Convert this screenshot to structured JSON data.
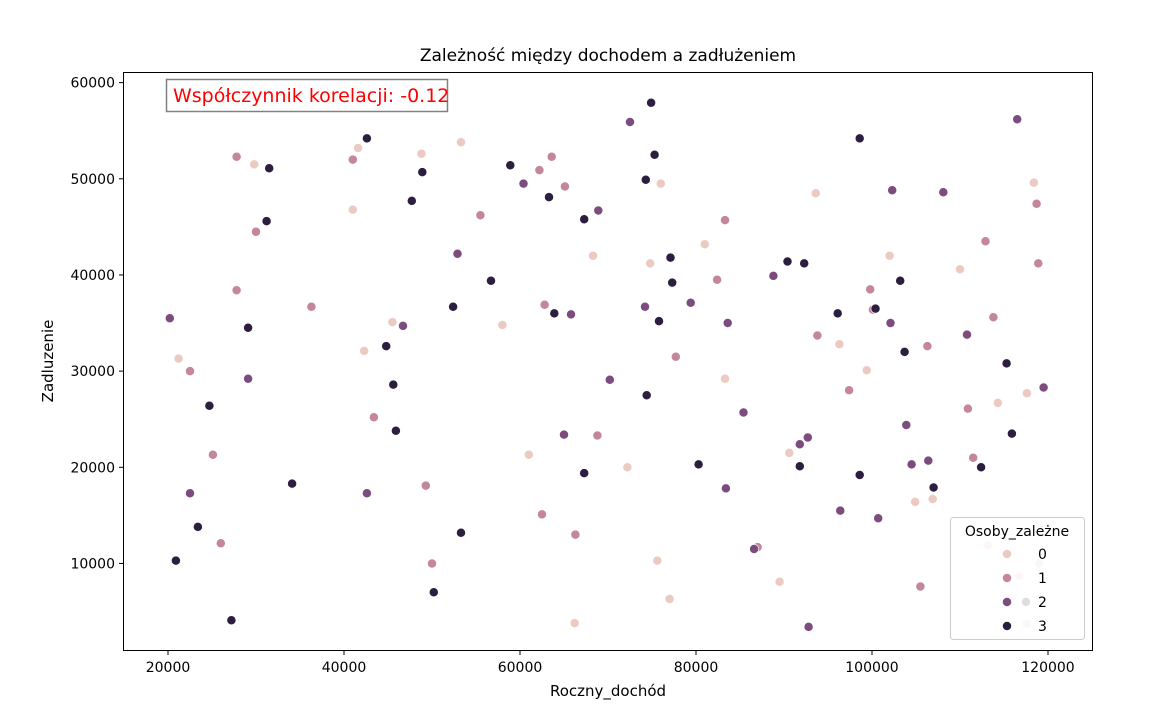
{
  "chart_data": {
    "type": "scatter",
    "title": "Zależność między dochodem a zadłużeniem",
    "xlabel": "Roczny_dochód",
    "ylabel": "Zadluzenie",
    "xlim": [
      15000,
      125000
    ],
    "ylim": [
      1000,
      61000
    ],
    "xticks": [
      20000,
      40000,
      60000,
      80000,
      100000,
      120000
    ],
    "yticks": [
      10000,
      20000,
      30000,
      40000,
      50000,
      60000
    ],
    "xtick_labels": [
      "20000",
      "40000",
      "60000",
      "80000",
      "100000",
      "120000"
    ],
    "ytick_labels": [
      "10000",
      "20000",
      "30000",
      "40000",
      "50000",
      "60000"
    ],
    "grid": false,
    "annotation": {
      "text": "Współczynnik korelacji: -0.12",
      "color": "#ff0000"
    },
    "legend": {
      "title": "Osoby_zależne",
      "placement": "lower-right",
      "entries": [
        "0",
        "1",
        "2",
        "3"
      ]
    },
    "series_colors": {
      "0": "#ebcac2",
      "1": "#c4869a",
      "2": "#7d4c7f",
      "3": "#2c1e3e"
    },
    "points": [
      {
        "x": 21200,
        "y": 31300,
        "c": 0
      },
      {
        "x": 29800,
        "y": 51500,
        "c": 0
      },
      {
        "x": 41000,
        "y": 46800,
        "c": 0
      },
      {
        "x": 41600,
        "y": 53200,
        "c": 0
      },
      {
        "x": 42300,
        "y": 32100,
        "c": 0
      },
      {
        "x": 45500,
        "y": 35100,
        "c": 0
      },
      {
        "x": 48800,
        "y": 52600,
        "c": 0
      },
      {
        "x": 53300,
        "y": 53800,
        "c": 0
      },
      {
        "x": 58000,
        "y": 34800,
        "c": 0
      },
      {
        "x": 61000,
        "y": 21300,
        "c": 0
      },
      {
        "x": 66200,
        "y": 3800,
        "c": 0
      },
      {
        "x": 68300,
        "y": 42000,
        "c": 0
      },
      {
        "x": 72200,
        "y": 20000,
        "c": 0
      },
      {
        "x": 74800,
        "y": 41200,
        "c": 0
      },
      {
        "x": 75600,
        "y": 10300,
        "c": 0
      },
      {
        "x": 76000,
        "y": 49500,
        "c": 0
      },
      {
        "x": 77000,
        "y": 6300,
        "c": 0
      },
      {
        "x": 81000,
        "y": 43200,
        "c": 0
      },
      {
        "x": 83300,
        "y": 29200,
        "c": 0
      },
      {
        "x": 89500,
        "y": 8100,
        "c": 0
      },
      {
        "x": 90600,
        "y": 21500,
        "c": 0
      },
      {
        "x": 93600,
        "y": 48500,
        "c": 0
      },
      {
        "x": 96300,
        "y": 32800,
        "c": 0
      },
      {
        "x": 99400,
        "y": 30100,
        "c": 0
      },
      {
        "x": 102000,
        "y": 42000,
        "c": 0
      },
      {
        "x": 104900,
        "y": 16400,
        "c": 0
      },
      {
        "x": 106900,
        "y": 16700,
        "c": 0
      },
      {
        "x": 110000,
        "y": 40600,
        "c": 0
      },
      {
        "x": 114300,
        "y": 26700,
        "c": 0
      },
      {
        "x": 117600,
        "y": 27700,
        "c": 0
      },
      {
        "x": 118400,
        "y": 49600,
        "c": 0
      },
      {
        "x": 119000,
        "y": 10000,
        "c": 0
      },
      {
        "x": 116700,
        "y": 8700,
        "c": 0
      },
      {
        "x": 117600,
        "y": 3700,
        "c": 0
      },
      {
        "x": 113200,
        "y": 11900,
        "c": 0
      },
      {
        "x": 22500,
        "y": 30000,
        "c": 1
      },
      {
        "x": 25100,
        "y": 21300,
        "c": 1
      },
      {
        "x": 26000,
        "y": 12100,
        "c": 1
      },
      {
        "x": 27800,
        "y": 52300,
        "c": 1
      },
      {
        "x": 27800,
        "y": 38400,
        "c": 1
      },
      {
        "x": 30000,
        "y": 44500,
        "c": 1
      },
      {
        "x": 36300,
        "y": 36700,
        "c": 1
      },
      {
        "x": 41000,
        "y": 52000,
        "c": 1
      },
      {
        "x": 43400,
        "y": 25200,
        "c": 1
      },
      {
        "x": 49300,
        "y": 18100,
        "c": 1
      },
      {
        "x": 50000,
        "y": 10000,
        "c": 1
      },
      {
        "x": 55500,
        "y": 46200,
        "c": 1
      },
      {
        "x": 62200,
        "y": 50900,
        "c": 1
      },
      {
        "x": 62500,
        "y": 15100,
        "c": 1
      },
      {
        "x": 62800,
        "y": 36900,
        "c": 1
      },
      {
        "x": 63600,
        "y": 52300,
        "c": 1
      },
      {
        "x": 65100,
        "y": 49200,
        "c": 1
      },
      {
        "x": 66300,
        "y": 13000,
        "c": 1
      },
      {
        "x": 68800,
        "y": 23300,
        "c": 1
      },
      {
        "x": 77700,
        "y": 31500,
        "c": 1
      },
      {
        "x": 82400,
        "y": 39500,
        "c": 1
      },
      {
        "x": 83300,
        "y": 45700,
        "c": 1
      },
      {
        "x": 87000,
        "y": 11700,
        "c": 1
      },
      {
        "x": 93800,
        "y": 33700,
        "c": 1
      },
      {
        "x": 97400,
        "y": 28000,
        "c": 1
      },
      {
        "x": 99800,
        "y": 38500,
        "c": 1
      },
      {
        "x": 100100,
        "y": 36400,
        "c": 1
      },
      {
        "x": 105500,
        "y": 7600,
        "c": 1
      },
      {
        "x": 106300,
        "y": 32600,
        "c": 1
      },
      {
        "x": 110900,
        "y": 26100,
        "c": 1
      },
      {
        "x": 111500,
        "y": 21000,
        "c": 1
      },
      {
        "x": 112900,
        "y": 43500,
        "c": 1
      },
      {
        "x": 113800,
        "y": 35600,
        "c": 1
      },
      {
        "x": 118700,
        "y": 47400,
        "c": 1
      },
      {
        "x": 118900,
        "y": 41200,
        "c": 1
      },
      {
        "x": 20200,
        "y": 35500,
        "c": 2
      },
      {
        "x": 22500,
        "y": 17300,
        "c": 2
      },
      {
        "x": 29100,
        "y": 29200,
        "c": 2
      },
      {
        "x": 42600,
        "y": 17300,
        "c": 2
      },
      {
        "x": 46700,
        "y": 34700,
        "c": 2
      },
      {
        "x": 52900,
        "y": 42200,
        "c": 2
      },
      {
        "x": 60400,
        "y": 49500,
        "c": 2
      },
      {
        "x": 65000,
        "y": 23400,
        "c": 2
      },
      {
        "x": 65800,
        "y": 35900,
        "c": 2
      },
      {
        "x": 68900,
        "y": 46700,
        "c": 2
      },
      {
        "x": 70200,
        "y": 29100,
        "c": 2
      },
      {
        "x": 72500,
        "y": 55900,
        "c": 2
      },
      {
        "x": 74200,
        "y": 36700,
        "c": 2
      },
      {
        "x": 79400,
        "y": 37100,
        "c": 2
      },
      {
        "x": 83400,
        "y": 17800,
        "c": 2
      },
      {
        "x": 83600,
        "y": 35000,
        "c": 2
      },
      {
        "x": 85400,
        "y": 25700,
        "c": 2
      },
      {
        "x": 86600,
        "y": 11500,
        "c": 2
      },
      {
        "x": 88800,
        "y": 39900,
        "c": 2
      },
      {
        "x": 91800,
        "y": 22400,
        "c": 2
      },
      {
        "x": 92700,
        "y": 23100,
        "c": 2
      },
      {
        "x": 92800,
        "y": 3400,
        "c": 2
      },
      {
        "x": 96400,
        "y": 15500,
        "c": 2
      },
      {
        "x": 100700,
        "y": 14700,
        "c": 2
      },
      {
        "x": 102100,
        "y": 35000,
        "c": 2
      },
      {
        "x": 102300,
        "y": 48800,
        "c": 2
      },
      {
        "x": 103900,
        "y": 24400,
        "c": 2
      },
      {
        "x": 104500,
        "y": 20300,
        "c": 2
      },
      {
        "x": 106400,
        "y": 20700,
        "c": 2
      },
      {
        "x": 108100,
        "y": 48600,
        "c": 2
      },
      {
        "x": 110800,
        "y": 33800,
        "c": 2
      },
      {
        "x": 116500,
        "y": 56200,
        "c": 2
      },
      {
        "x": 119500,
        "y": 28300,
        "c": 2
      },
      {
        "x": 20900,
        "y": 10300,
        "c": 3
      },
      {
        "x": 23400,
        "y": 13800,
        "c": 3
      },
      {
        "x": 24700,
        "y": 26400,
        "c": 3
      },
      {
        "x": 27200,
        "y": 4100,
        "c": 3
      },
      {
        "x": 29100,
        "y": 34500,
        "c": 3
      },
      {
        "x": 31200,
        "y": 45600,
        "c": 3
      },
      {
        "x": 31500,
        "y": 51100,
        "c": 3
      },
      {
        "x": 34100,
        "y": 18300,
        "c": 3
      },
      {
        "x": 42600,
        "y": 54200,
        "c": 3
      },
      {
        "x": 44800,
        "y": 32600,
        "c": 3
      },
      {
        "x": 45600,
        "y": 28600,
        "c": 3
      },
      {
        "x": 45900,
        "y": 23800,
        "c": 3
      },
      {
        "x": 47700,
        "y": 47700,
        "c": 3
      },
      {
        "x": 48900,
        "y": 50700,
        "c": 3
      },
      {
        "x": 50200,
        "y": 7000,
        "c": 3
      },
      {
        "x": 52400,
        "y": 36700,
        "c": 3
      },
      {
        "x": 53300,
        "y": 13200,
        "c": 3
      },
      {
        "x": 56700,
        "y": 39400,
        "c": 3
      },
      {
        "x": 58900,
        "y": 51400,
        "c": 3
      },
      {
        "x": 63300,
        "y": 48100,
        "c": 3
      },
      {
        "x": 63900,
        "y": 36000,
        "c": 3
      },
      {
        "x": 67300,
        "y": 45800,
        "c": 3
      },
      {
        "x": 67300,
        "y": 19400,
        "c": 3
      },
      {
        "x": 74400,
        "y": 27500,
        "c": 3
      },
      {
        "x": 74300,
        "y": 49900,
        "c": 3
      },
      {
        "x": 74900,
        "y": 57900,
        "c": 3
      },
      {
        "x": 75300,
        "y": 52500,
        "c": 3
      },
      {
        "x": 75800,
        "y": 35200,
        "c": 3
      },
      {
        "x": 77100,
        "y": 41800,
        "c": 3
      },
      {
        "x": 77300,
        "y": 39200,
        "c": 3
      },
      {
        "x": 80300,
        "y": 20300,
        "c": 3
      },
      {
        "x": 90400,
        "y": 41400,
        "c": 3
      },
      {
        "x": 91800,
        "y": 20100,
        "c": 3
      },
      {
        "x": 92300,
        "y": 41200,
        "c": 3
      },
      {
        "x": 96100,
        "y": 36000,
        "c": 3
      },
      {
        "x": 98600,
        "y": 54200,
        "c": 3
      },
      {
        "x": 98600,
        "y": 19200,
        "c": 3
      },
      {
        "x": 100400,
        "y": 36500,
        "c": 3
      },
      {
        "x": 103200,
        "y": 39400,
        "c": 3
      },
      {
        "x": 103700,
        "y": 32000,
        "c": 3
      },
      {
        "x": 107000,
        "y": 17900,
        "c": 3
      },
      {
        "x": 112400,
        "y": 20000,
        "c": 3
      },
      {
        "x": 115300,
        "y": 30800,
        "c": 3
      },
      {
        "x": 115900,
        "y": 23500,
        "c": 3
      },
      {
        "x": 117500,
        "y": 6000,
        "c": 3
      }
    ]
  }
}
